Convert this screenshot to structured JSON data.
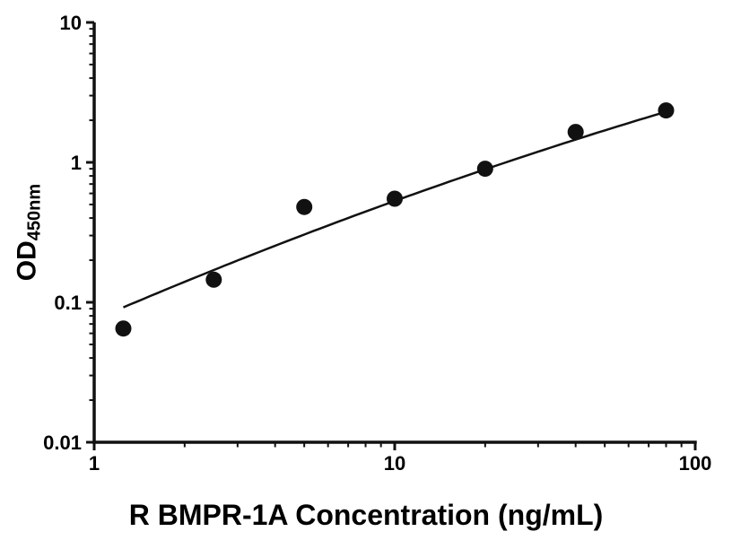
{
  "chart_data": {
    "type": "scatter",
    "title": "",
    "xlabel": "R BMPR-1A Concentration (ng/mL)",
    "ylabel_main": "OD",
    "ylabel_sub": "450nm",
    "x_scale": "log",
    "y_scale": "log",
    "xlim": [
      1,
      100
    ],
    "ylim": [
      0.01,
      10
    ],
    "grid": false,
    "legend": false,
    "marker_color": "#111111",
    "line_color": "#111111",
    "x_ticks": [
      {
        "value": 1,
        "label": "1"
      },
      {
        "value": 10,
        "label": "10"
      },
      {
        "value": 100,
        "label": "100"
      }
    ],
    "y_ticks": [
      {
        "value": 0.01,
        "label": "0.01"
      },
      {
        "value": 0.1,
        "label": "0.1"
      },
      {
        "value": 1,
        "label": "1"
      },
      {
        "value": 10,
        "label": "10"
      }
    ],
    "points": {
      "x": [
        1.25,
        2.5,
        5,
        10,
        20,
        40,
        80
      ],
      "y": [
        0.065,
        0.145,
        0.48,
        0.55,
        0.9,
        1.65,
        2.35
      ]
    },
    "fit_curve": {
      "type": "quadratic_loglog",
      "coefficients": {
        "a": -1.125,
        "b": 0.924,
        "c": -0.075
      },
      "x_start": 1.25,
      "x_end": 80
    }
  }
}
